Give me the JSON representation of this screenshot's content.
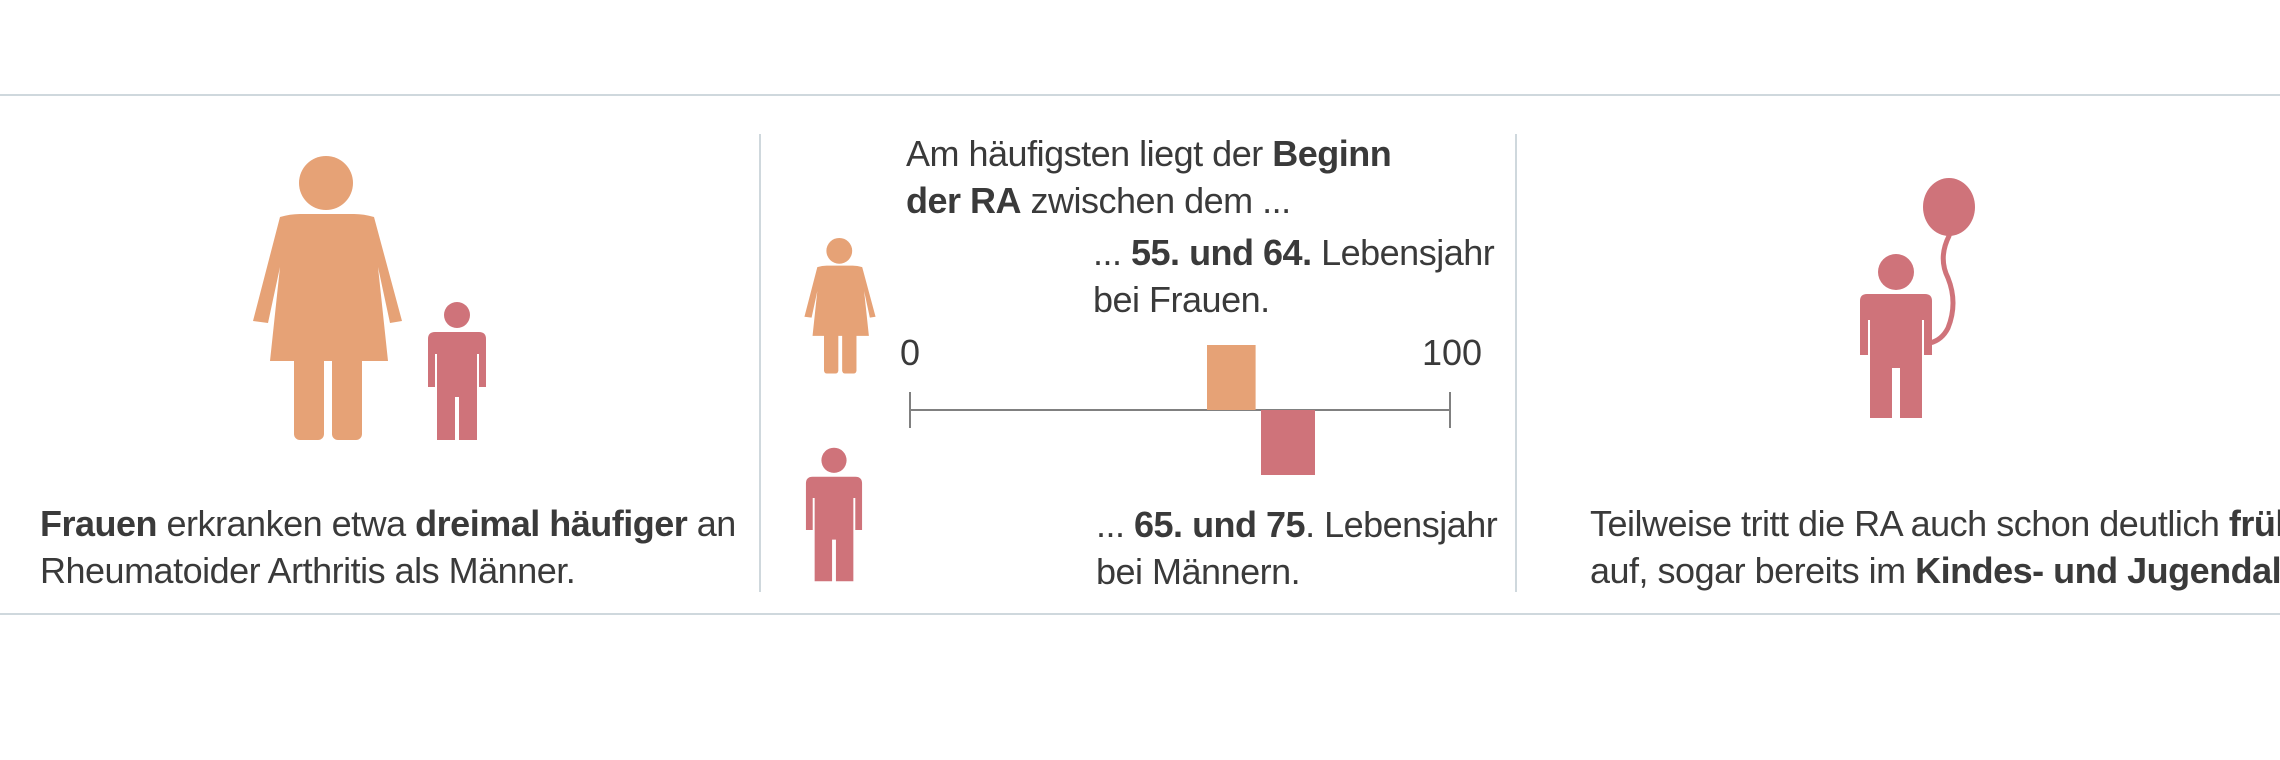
{
  "colors": {
    "woman": "#E6A276",
    "man": "#CF737A",
    "text": "#3a3a3a",
    "divider": "#cfd8dd",
    "axis": "#808080"
  },
  "panel1": {
    "icons": [
      "woman-icon",
      "boy-icon"
    ],
    "caption": {
      "p1": "Frauen",
      "p2": " erkranken etwa ",
      "p3": "dreimal häufiger",
      "p4": " an",
      "line2": "Rheumatoider Arthritis als Männer."
    }
  },
  "panel2": {
    "heading": {
      "p1": "Am häufigsten liegt der ",
      "p2": "Beginn",
      "p3": "der RA",
      "p4": " zwischen dem ..."
    },
    "women_label": {
      "p1": "... ",
      "p2": "55. und 64.",
      "p3": " Lebensjahr",
      "line2": "bei Frauen."
    },
    "men_label": {
      "p1": "... ",
      "p2": "65. und 75",
      "p3": ". Lebensjahr",
      "line2": "bei Männern."
    },
    "axis_min_label": "0",
    "axis_max_label": "100",
    "scale": {
      "min": 0,
      "max": 100
    },
    "ranges": [
      {
        "group": "women",
        "start": 55,
        "end": 64
      },
      {
        "group": "men",
        "start": 65,
        "end": 75
      }
    ]
  },
  "panel3": {
    "icons": [
      "boy-with-balloon-icon"
    ],
    "caption": {
      "p1": "Teilweise tritt die RA auch schon deutlich ",
      "p2": "früher",
      "p3": "auf, sogar bereits im ",
      "p4": "Kindes- und Jugendalter."
    }
  }
}
